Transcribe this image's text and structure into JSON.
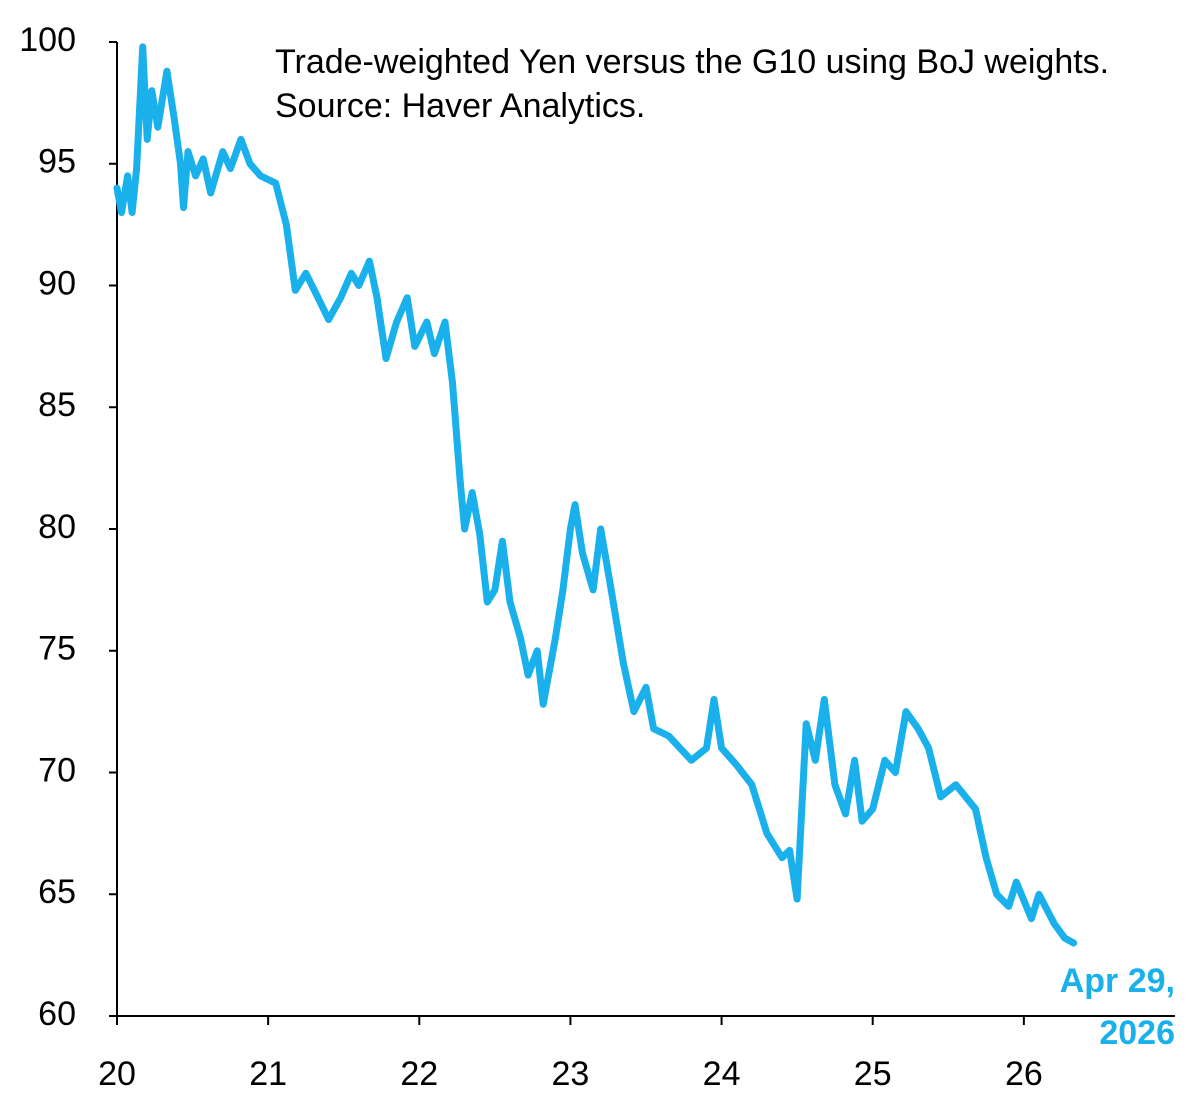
{
  "chart_data": {
    "type": "line",
    "title": "Trade-weighted Yen versus the G10 using BoJ weights. Source: Haver Analytics.",
    "annotation": [
      "Apr 29,",
      "2026"
    ],
    "x": [
      2020.0,
      2020.03,
      2020.07,
      2020.1,
      2020.13,
      2020.17,
      2020.2,
      2020.23,
      2020.27,
      2020.33,
      2020.38,
      2020.42,
      2020.44,
      2020.47,
      2020.52,
      2020.57,
      2020.62,
      2020.7,
      2020.75,
      2020.82,
      2020.88,
      2020.95,
      2021.05,
      2021.12,
      2021.18,
      2021.25,
      2021.33,
      2021.4,
      2021.48,
      2021.55,
      2021.6,
      2021.67,
      2021.72,
      2021.78,
      2021.85,
      2021.92,
      2021.97,
      2022.05,
      2022.1,
      2022.17,
      2022.22,
      2022.27,
      2022.3,
      2022.35,
      2022.4,
      2022.45,
      2022.5,
      2022.55,
      2022.6,
      2022.67,
      2022.72,
      2022.78,
      2022.82,
      2022.9,
      2022.95,
      2023.0,
      2023.03,
      2023.08,
      2023.15,
      2023.2,
      2023.27,
      2023.35,
      2023.42,
      2023.5,
      2023.55,
      2023.65,
      2023.8,
      2023.9,
      2023.95,
      2024.0,
      2024.1,
      2024.2,
      2024.3,
      2024.4,
      2024.45,
      2024.5,
      2024.56,
      2024.62,
      2024.68,
      2024.75,
      2024.82,
      2024.88,
      2024.93,
      2025.0,
      2025.08,
      2025.15,
      2025.22,
      2025.3,
      2025.37,
      2025.45,
      2025.55,
      2025.68,
      2025.75,
      2025.82,
      2025.9,
      2025.95,
      2026.05,
      2026.1,
      2026.2,
      2026.27,
      2026.33
    ],
    "series": [
      {
        "color": "#1ab0ec",
        "values": [
          94,
          93,
          94.5,
          93,
          94.8,
          99.8,
          96,
          98,
          96.5,
          98.8,
          96.8,
          95,
          93.2,
          95.5,
          94.5,
          95.2,
          93.8,
          95.5,
          94.8,
          96,
          95,
          94.5,
          94.2,
          92.5,
          89.8,
          90.5,
          89.5,
          88.6,
          89.5,
          90.5,
          90,
          91,
          89.5,
          87,
          88.5,
          89.5,
          87.5,
          88.5,
          87.2,
          88.5,
          86,
          82,
          80,
          81.5,
          79.8,
          77,
          77.5,
          79.5,
          77,
          75.5,
          74,
          75,
          72.8,
          75.5,
          77.5,
          80,
          81,
          79,
          77.5,
          80,
          77.5,
          74.5,
          72.5,
          73.5,
          71.8,
          71.5,
          70.5,
          71,
          73,
          71,
          70.3,
          69.5,
          67.5,
          66.5,
          66.8,
          64.8,
          72,
          70.5,
          73,
          69.5,
          68.3,
          70.5,
          68,
          68.5,
          70.5,
          70,
          72.5,
          71.8,
          71,
          69,
          69.5,
          68.5,
          66.5,
          65,
          64.5,
          65.5,
          64,
          65,
          63.8,
          63.2,
          63
        ]
      }
    ],
    "xlim": [
      2020,
      2027
    ],
    "xticks": [
      {
        "value": 2020,
        "label": "20"
      },
      {
        "value": 2021,
        "label": "21"
      },
      {
        "value": 2022,
        "label": "22"
      },
      {
        "value": 2023,
        "label": "23"
      },
      {
        "value": 2024,
        "label": "24"
      },
      {
        "value": 2025,
        "label": "25"
      },
      {
        "value": 2026,
        "label": "26"
      }
    ],
    "ylim": [
      60,
      100
    ],
    "yticks": [
      60,
      65,
      70,
      75,
      80,
      85,
      90,
      95,
      100
    ],
    "grid": false
  }
}
